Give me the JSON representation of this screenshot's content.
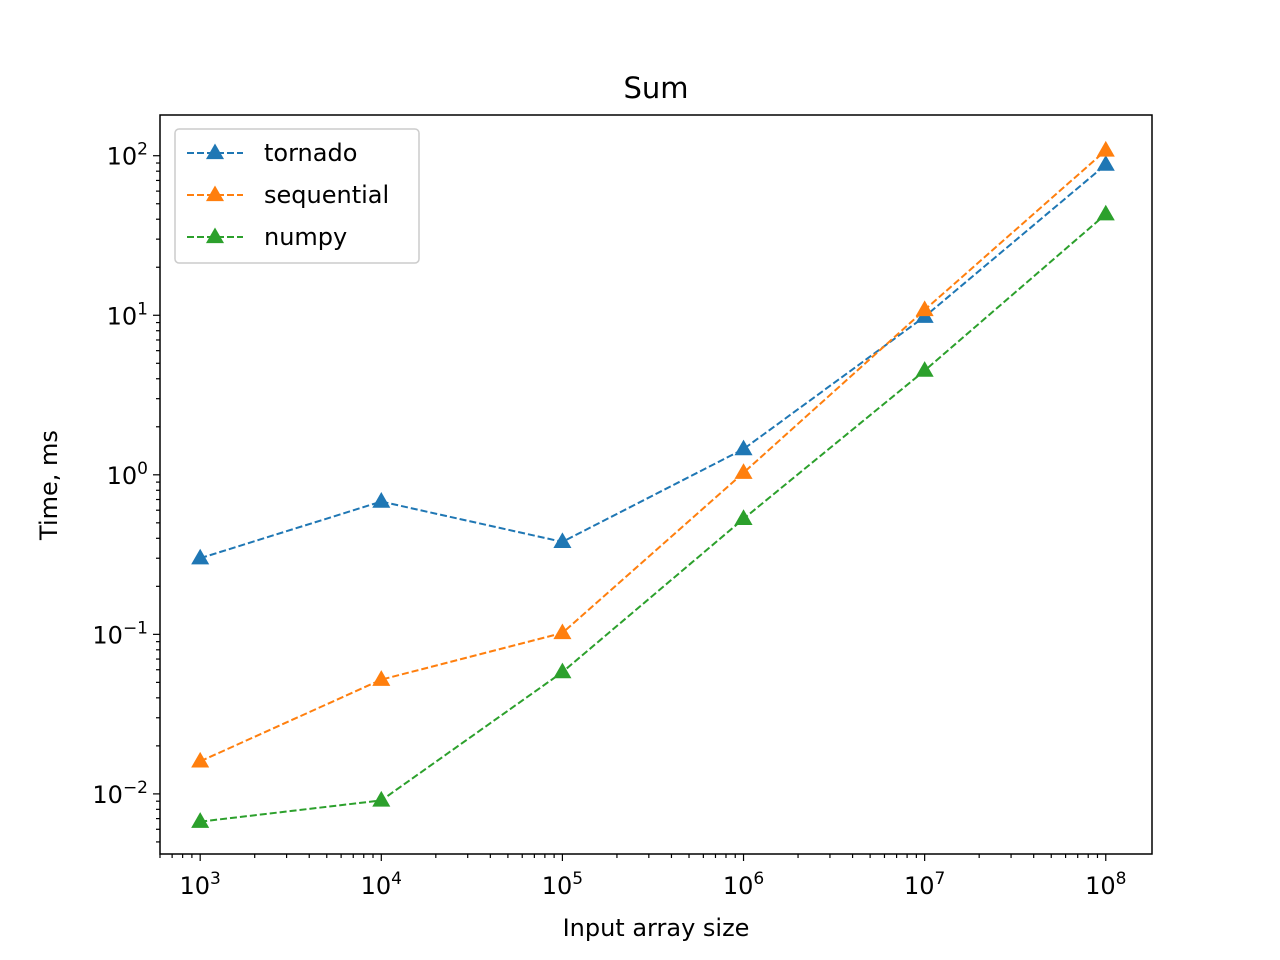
{
  "chart_data": {
    "type": "line",
    "title": "Sum",
    "xlabel": "Input array size",
    "ylabel": "Time, ms",
    "x_scale": "log",
    "y_scale": "log",
    "x": [
      1000,
      10000,
      100000,
      1000000,
      10000000,
      100000000
    ],
    "xlim": [
      600,
      180000000
    ],
    "ylim": [
      0.0042,
      180
    ],
    "x_ticks": [
      {
        "value": 1000,
        "base": "10",
        "exp": "3"
      },
      {
        "value": 10000,
        "base": "10",
        "exp": "4"
      },
      {
        "value": 100000,
        "base": "10",
        "exp": "5"
      },
      {
        "value": 1000000,
        "base": "10",
        "exp": "6"
      },
      {
        "value": 10000000,
        "base": "10",
        "exp": "7"
      },
      {
        "value": 100000000,
        "base": "10",
        "exp": "8"
      }
    ],
    "y_ticks": [
      {
        "value": 0.01,
        "base": "10",
        "exp": "−2"
      },
      {
        "value": 0.1,
        "base": "10",
        "exp": "−1"
      },
      {
        "value": 1,
        "base": "10",
        "exp": "0"
      },
      {
        "value": 10,
        "base": "10",
        "exp": "1"
      },
      {
        "value": 100,
        "base": "10",
        "exp": "2"
      }
    ],
    "grid": false,
    "legend": "top-left",
    "series": [
      {
        "name": "tornado",
        "color": "#1f77b4",
        "marker": "triangle",
        "line_style": "dashed",
        "values": [
          0.3,
          0.68,
          0.38,
          1.45,
          9.8,
          88
        ]
      },
      {
        "name": "sequential",
        "color": "#ff7f0e",
        "marker": "triangle",
        "line_style": "dashed",
        "values": [
          0.016,
          0.052,
          0.102,
          1.03,
          10.8,
          108
        ]
      },
      {
        "name": "numpy",
        "color": "#2ca02c",
        "marker": "triangle",
        "line_style": "dashed",
        "values": [
          0.0067,
          0.0091,
          0.058,
          0.53,
          4.5,
          43
        ]
      }
    ]
  }
}
